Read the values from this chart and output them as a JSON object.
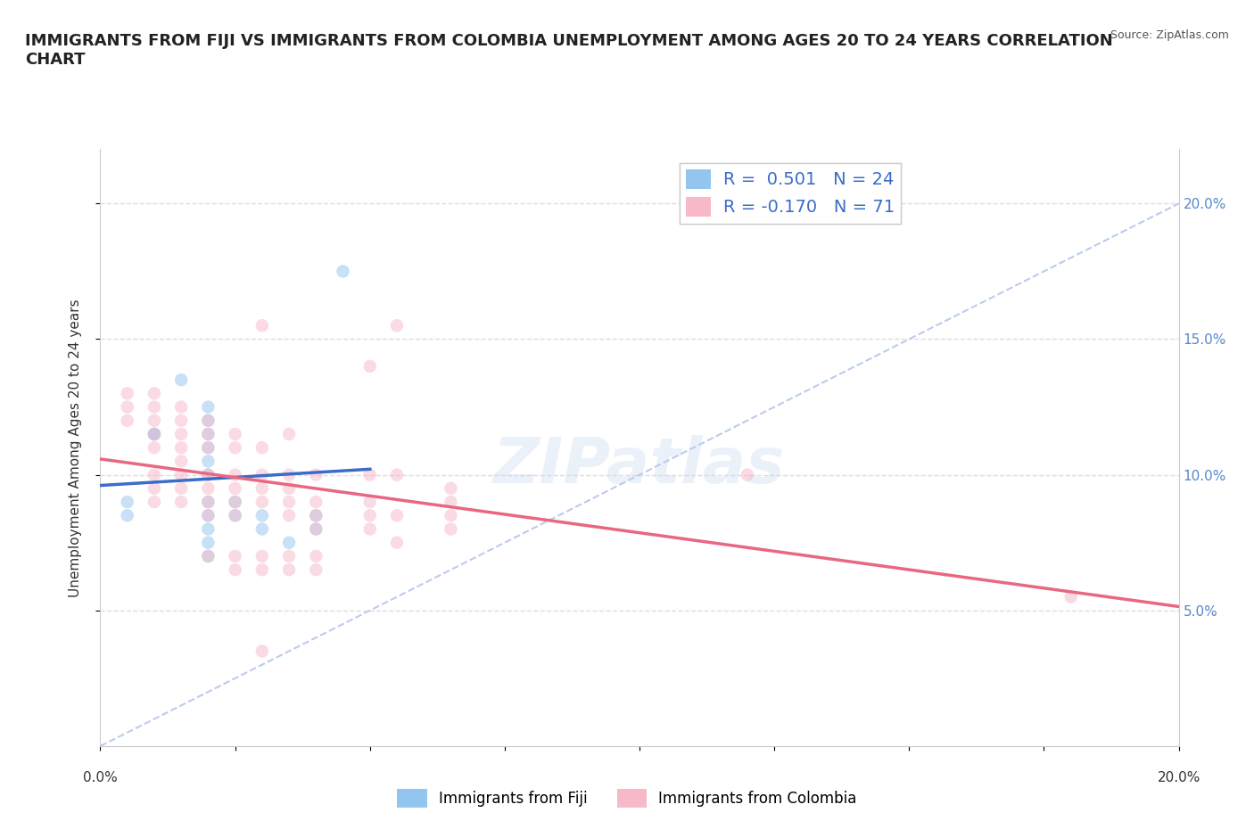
{
  "title": "IMMIGRANTS FROM FIJI VS IMMIGRANTS FROM COLOMBIA UNEMPLOYMENT AMONG AGES 20 TO 24 YEARS CORRELATION\nCHART",
  "source_text": "Source: ZipAtlas.com",
  "ylabel": "Unemployment Among Ages 20 to 24 years",
  "xlim": [
    0.0,
    0.2
  ],
  "ylim": [
    0.0,
    0.22
  ],
  "xticks": [
    0.0,
    0.025,
    0.05,
    0.075,
    0.1,
    0.125,
    0.15,
    0.175,
    0.2
  ],
  "yticks": [
    0.05,
    0.1,
    0.15,
    0.2
  ],
  "xlabel_ticks": [
    0.0,
    0.2
  ],
  "xlabel_labels": [
    "0.0%",
    "20.0%"
  ],
  "ytick_labels": [
    "5.0%",
    "10.0%",
    "15.0%",
    "20.0%"
  ],
  "fiji_color": "#92C5F0",
  "colombia_color": "#F7B8C8",
  "fiji_line_color": "#3B6CC8",
  "colombia_line_color": "#E86880",
  "diag_line_color": "#BBCCEE",
  "R_fiji": 0.501,
  "N_fiji": 24,
  "R_colombia": -0.17,
  "N_colombia": 71,
  "fiji_points": [
    [
      0.005,
      0.09
    ],
    [
      0.005,
      0.085
    ],
    [
      0.01,
      0.115
    ],
    [
      0.01,
      0.115
    ],
    [
      0.015,
      0.135
    ],
    [
      0.02,
      0.125
    ],
    [
      0.02,
      0.12
    ],
    [
      0.02,
      0.115
    ],
    [
      0.02,
      0.11
    ],
    [
      0.02,
      0.105
    ],
    [
      0.02,
      0.1
    ],
    [
      0.02,
      0.09
    ],
    [
      0.02,
      0.085
    ],
    [
      0.02,
      0.08
    ],
    [
      0.02,
      0.075
    ],
    [
      0.02,
      0.07
    ],
    [
      0.025,
      0.09
    ],
    [
      0.025,
      0.085
    ],
    [
      0.03,
      0.085
    ],
    [
      0.03,
      0.08
    ],
    [
      0.035,
      0.075
    ],
    [
      0.04,
      0.085
    ],
    [
      0.04,
      0.08
    ],
    [
      0.045,
      0.175
    ]
  ],
  "colombia_points": [
    [
      0.005,
      0.13
    ],
    [
      0.005,
      0.125
    ],
    [
      0.005,
      0.12
    ],
    [
      0.01,
      0.13
    ],
    [
      0.01,
      0.125
    ],
    [
      0.01,
      0.12
    ],
    [
      0.01,
      0.115
    ],
    [
      0.01,
      0.11
    ],
    [
      0.01,
      0.1
    ],
    [
      0.01,
      0.095
    ],
    [
      0.01,
      0.09
    ],
    [
      0.015,
      0.125
    ],
    [
      0.015,
      0.12
    ],
    [
      0.015,
      0.115
    ],
    [
      0.015,
      0.11
    ],
    [
      0.015,
      0.105
    ],
    [
      0.015,
      0.1
    ],
    [
      0.015,
      0.095
    ],
    [
      0.015,
      0.09
    ],
    [
      0.02,
      0.12
    ],
    [
      0.02,
      0.115
    ],
    [
      0.02,
      0.11
    ],
    [
      0.02,
      0.1
    ],
    [
      0.02,
      0.095
    ],
    [
      0.02,
      0.09
    ],
    [
      0.02,
      0.085
    ],
    [
      0.02,
      0.07
    ],
    [
      0.025,
      0.115
    ],
    [
      0.025,
      0.11
    ],
    [
      0.025,
      0.1
    ],
    [
      0.025,
      0.095
    ],
    [
      0.025,
      0.09
    ],
    [
      0.025,
      0.085
    ],
    [
      0.025,
      0.07
    ],
    [
      0.025,
      0.065
    ],
    [
      0.03,
      0.155
    ],
    [
      0.03,
      0.11
    ],
    [
      0.03,
      0.1
    ],
    [
      0.03,
      0.095
    ],
    [
      0.03,
      0.09
    ],
    [
      0.03,
      0.07
    ],
    [
      0.03,
      0.065
    ],
    [
      0.03,
      0.035
    ],
    [
      0.035,
      0.115
    ],
    [
      0.035,
      0.1
    ],
    [
      0.035,
      0.095
    ],
    [
      0.035,
      0.09
    ],
    [
      0.035,
      0.085
    ],
    [
      0.035,
      0.07
    ],
    [
      0.035,
      0.065
    ],
    [
      0.04,
      0.1
    ],
    [
      0.04,
      0.09
    ],
    [
      0.04,
      0.085
    ],
    [
      0.04,
      0.08
    ],
    [
      0.04,
      0.07
    ],
    [
      0.04,
      0.065
    ],
    [
      0.05,
      0.14
    ],
    [
      0.05,
      0.1
    ],
    [
      0.05,
      0.09
    ],
    [
      0.05,
      0.085
    ],
    [
      0.05,
      0.08
    ],
    [
      0.055,
      0.155
    ],
    [
      0.055,
      0.1
    ],
    [
      0.055,
      0.085
    ],
    [
      0.055,
      0.075
    ],
    [
      0.065,
      0.095
    ],
    [
      0.065,
      0.09
    ],
    [
      0.065,
      0.085
    ],
    [
      0.065,
      0.08
    ],
    [
      0.12,
      0.1
    ],
    [
      0.18,
      0.055
    ]
  ],
  "background_color": "#FFFFFF",
  "grid_color": "#DDDDDD",
  "watermark_color": "#C8D8EE",
  "watermark_alpha": 0.35,
  "marker_size": 110,
  "marker_alpha": 0.5,
  "title_fontsize": 13,
  "tick_fontsize": 11,
  "label_fontsize": 11,
  "source_fontsize": 9,
  "legend_fontsize": 13
}
